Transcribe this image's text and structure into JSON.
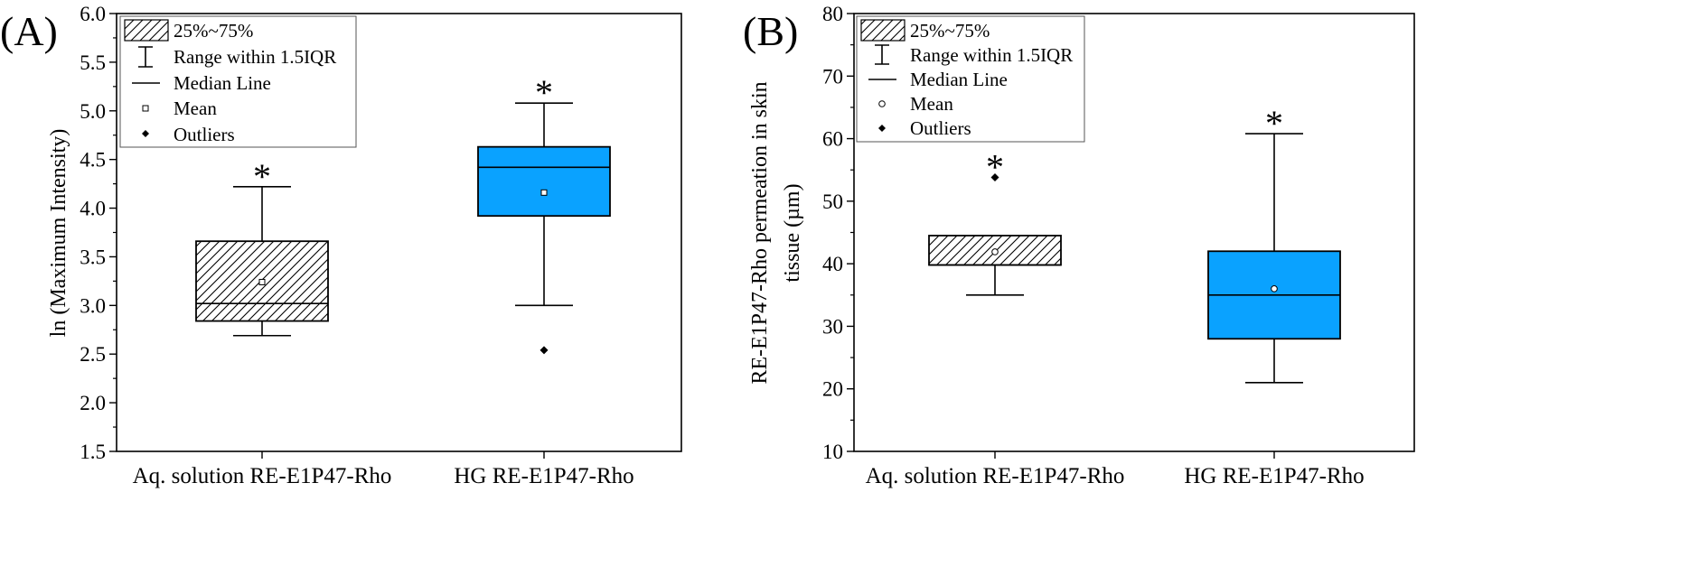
{
  "chart_data": [
    {
      "type": "box",
      "panel_label": "(A)",
      "title": "",
      "xlabel": "",
      "ylabel": "ln (Maximum Intensity)",
      "ylim": [
        1.5,
        6.0
      ],
      "y_ticks": [
        "1.5",
        "2.0",
        "2.5",
        "3.0",
        "3.5",
        "4.0",
        "4.5",
        "5.0",
        "5.5",
        "6.0"
      ],
      "y_minor_step": 0.25,
      "grid": false,
      "legend_position": "top-left",
      "legend": {
        "box": "25%~75%",
        "whisker": "Range within 1.5IQR",
        "median": "Median Line",
        "mean": "Mean",
        "outliers": "Outliers"
      },
      "categories": [
        "Aq. solution RE-E1P47-Rho",
        "HG RE-E1P47-Rho"
      ],
      "boxes": [
        {
          "category": "Aq. solution RE-E1P47-Rho",
          "whisker_low": 2.69,
          "q1": 2.84,
          "median": 3.02,
          "q3": 3.66,
          "whisker_high": 4.22,
          "mean": 3.24,
          "outliers": [],
          "fill": "hatch",
          "annotation": "*"
        },
        {
          "category": "HG RE-E1P47-Rho",
          "whisker_low": 3.0,
          "q1": 3.92,
          "median": 4.42,
          "q3": 4.63,
          "whisker_high": 5.08,
          "mean": 4.16,
          "outliers": [
            2.54
          ],
          "fill": "#0aa2ff",
          "annotation": "*"
        }
      ]
    },
    {
      "type": "box",
      "panel_label": "(B)",
      "title": "",
      "xlabel": "",
      "ylabel": "RE-E1P47-Rho permeation in skin tissue (µm)",
      "ylabel_lines": [
        "RE-E1P47-Rho permeation in skin",
        "tissue (µm)"
      ],
      "ylim": [
        10,
        80
      ],
      "y_ticks": [
        "10",
        "20",
        "30",
        "40",
        "50",
        "60",
        "70",
        "80"
      ],
      "y_minor_step": 5,
      "grid": false,
      "legend_position": "top-left",
      "legend": {
        "box": "25%~75%",
        "whisker": "Range within 1.5IQR",
        "median": "Median Line",
        "mean": "Mean",
        "outliers": "Outliers"
      },
      "categories": [
        "Aq. solution RE-E1P47-Rho",
        "HG RE-E1P47-Rho"
      ],
      "boxes": [
        {
          "category": "Aq. solution RE-E1P47-Rho",
          "whisker_low": 35.0,
          "q1": 39.8,
          "median": 39.8,
          "q3": 44.5,
          "whisker_high": 44.5,
          "mean": 41.9,
          "outliers": [
            53.8
          ],
          "fill": "hatch",
          "annotation": "*"
        },
        {
          "category": "HG RE-E1P47-Rho",
          "whisker_low": 21.0,
          "q1": 28.0,
          "median": 35.0,
          "q3": 42.0,
          "whisker_high": 60.8,
          "mean": 36.0,
          "outliers": [],
          "fill": "#0aa2ff",
          "annotation": "*"
        }
      ]
    }
  ]
}
